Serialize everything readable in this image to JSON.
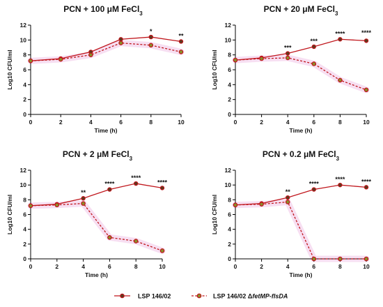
{
  "chart_data": [
    {
      "type": "line",
      "title": "PCN + 100 μM FeCl",
      "title_sub": "3",
      "xlabel": "Time (h)",
      "ylabel": "Log10 CFU/ml",
      "x": [
        0,
        2,
        4,
        6,
        8,
        10
      ],
      "xlim": [
        0,
        10
      ],
      "ylim": [
        0,
        12
      ],
      "xticks": [
        "0",
        "2",
        "4",
        "6",
        "8",
        "10"
      ],
      "yticks": [
        "0",
        "2",
        "4",
        "6",
        "8",
        "10",
        "12"
      ],
      "series": [
        {
          "name": "LSP 146/02",
          "values": [
            7.2,
            7.5,
            8.4,
            10.1,
            10.4,
            9.8
          ],
          "style": "solid",
          "marker": "filled"
        },
        {
          "name": "LSP 146/02 ΔfetMP-flsDA",
          "values": [
            7.2,
            7.4,
            8.0,
            9.6,
            9.3,
            8.4
          ],
          "style": "dashed",
          "marker": "open"
        }
      ],
      "annotations": [
        {
          "x": 8,
          "y": 10.4,
          "text": "*"
        },
        {
          "x": 10,
          "y": 9.8,
          "text": "**"
        }
      ]
    },
    {
      "type": "line",
      "title": "PCN + 20 μM FeCl",
      "title_sub": "3",
      "xlabel": "Time (h)",
      "ylabel": "Log10 CFU/ml",
      "x": [
        0,
        2,
        4,
        6,
        8,
        10
      ],
      "xlim": [
        0,
        10
      ],
      "ylim": [
        0,
        12
      ],
      "xticks": [
        "0",
        "2",
        "4",
        "6",
        "8",
        "10"
      ],
      "yticks": [
        "0",
        "2",
        "4",
        "6",
        "8",
        "10",
        "12"
      ],
      "series": [
        {
          "name": "LSP 146/02",
          "values": [
            7.3,
            7.6,
            8.2,
            9.1,
            10.1,
            9.9
          ],
          "style": "solid",
          "marker": "filled"
        },
        {
          "name": "LSP 146/02 ΔfetMP-flsDA",
          "values": [
            7.3,
            7.5,
            7.6,
            6.8,
            4.6,
            3.3
          ],
          "style": "dashed",
          "marker": "open"
        }
      ],
      "annotations": [
        {
          "x": 4,
          "y": 8.2,
          "text": "***"
        },
        {
          "x": 6,
          "y": 9.1,
          "text": "***"
        },
        {
          "x": 8,
          "y": 10.1,
          "text": "****"
        },
        {
          "x": 10,
          "y": 10.2,
          "text": "****"
        }
      ]
    },
    {
      "type": "line",
      "title": "PCN + 2 μM FeCl",
      "title_sub": "3",
      "xlabel": "Time (h)",
      "ylabel": "Log10 CFU/ml",
      "x": [
        0,
        2,
        4,
        6,
        8,
        10
      ],
      "xlim": [
        0,
        10
      ],
      "ylim": [
        0,
        12
      ],
      "xticks": [
        "0",
        "2",
        "4",
        "6",
        "8",
        "10"
      ],
      "yticks": [
        "0",
        "2",
        "4",
        "6",
        "8",
        "10",
        "12"
      ],
      "series": [
        {
          "name": "LSP 146/02",
          "values": [
            7.2,
            7.4,
            8.2,
            9.4,
            10.2,
            9.6
          ],
          "style": "solid",
          "marker": "filled"
        },
        {
          "name": "LSP 146/02 ΔfetMP-flsDA",
          "values": [
            7.2,
            7.3,
            7.5,
            2.9,
            2.4,
            1.1
          ],
          "style": "dashed",
          "marker": "open"
        }
      ],
      "annotations": [
        {
          "x": 4,
          "y": 8.2,
          "text": "**"
        },
        {
          "x": 6,
          "y": 9.4,
          "text": "****"
        },
        {
          "x": 8,
          "y": 10.2,
          "text": "****"
        },
        {
          "x": 10,
          "y": 9.6,
          "text": "****"
        }
      ]
    },
    {
      "type": "line",
      "title": "PCN + 0.2 μM FeCl",
      "title_sub": "3",
      "xlabel": "Time (h)",
      "ylabel": "Log10 CFU/ml",
      "x": [
        0,
        2,
        4,
        6,
        8,
        10
      ],
      "xlim": [
        0,
        10
      ],
      "ylim": [
        0,
        12
      ],
      "xticks": [
        "0",
        "2",
        "4",
        "6",
        "8",
        "10"
      ],
      "yticks": [
        "0",
        "2",
        "4",
        "6",
        "8",
        "10",
        "12"
      ],
      "series": [
        {
          "name": "LSP 146/02",
          "values": [
            7.3,
            7.5,
            8.3,
            9.4,
            10.0,
            9.7
          ],
          "style": "solid",
          "marker": "filled"
        },
        {
          "name": "LSP 146/02 ΔfetMP-flsDA",
          "values": [
            7.3,
            7.4,
            7.7,
            0.0,
            0.0,
            0.0
          ],
          "style": "dashed",
          "marker": "open"
        }
      ],
      "annotations": [
        {
          "x": 4,
          "y": 8.3,
          "text": "**"
        },
        {
          "x": 6,
          "y": 9.4,
          "text": "****"
        },
        {
          "x": 8,
          "y": 10.0,
          "text": "****"
        },
        {
          "x": 10,
          "y": 9.7,
          "text": "****"
        }
      ]
    }
  ],
  "legend": {
    "placement": "bottom",
    "items": [
      {
        "label": "LSP 146/02",
        "style": "solid",
        "marker": "filled"
      },
      {
        "label_prefix": "LSP 146/02 Δ",
        "label_italic": "fetMP-flsDA",
        "style": "dashed",
        "marker": "open"
      }
    ]
  },
  "colors": {
    "wild_type": "#c0161c",
    "mutant": "#c0161c",
    "mutant_fill": "#8a8f2a",
    "wild_type_fill": "#5b3a1e",
    "highlight": "#f7dff2",
    "axis": "#000000"
  }
}
